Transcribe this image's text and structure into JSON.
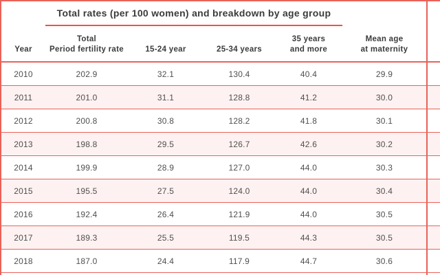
{
  "colors": {
    "line-red": "#e96158",
    "underline-red": "#ef5147",
    "row-pink": "#fdf2f1",
    "heading-text": "#3b3b3b",
    "value-text": "#4f4f4f",
    "bg": "#ffffff"
  },
  "table": {
    "title": "Total rates (per 100 women) and breakdown by age group",
    "header": {
      "col1": [
        "Year"
      ],
      "col2": [
        "Total",
        "Period fertility rate"
      ],
      "col3": [
        "15-24 year"
      ],
      "col4": [
        "25-34 years"
      ],
      "col5": [
        "35 years",
        "and more"
      ],
      "col6": [
        "Mean age",
        "at maternity"
      ]
    },
    "rows": [
      [
        "2010",
        "202.9",
        "32.1",
        "130.4",
        "40.4",
        "29.9"
      ],
      [
        "2011",
        "201.0",
        "31.1",
        "128.8",
        "41.2",
        "30.0"
      ],
      [
        "2012",
        "200.8",
        "30.8",
        "128.2",
        "41.8",
        "30.1"
      ],
      [
        "2013",
        "198.8",
        "29.5",
        "126.7",
        "42.6",
        "30.2"
      ],
      [
        "2014",
        "199.9",
        "28.9",
        "127.0",
        "44.0",
        "30.3"
      ],
      [
        "2015",
        "195.5",
        "27.5",
        "124.0",
        "44.0",
        "30.4"
      ],
      [
        "2016",
        "192.4",
        "26.4",
        "121.9",
        "44.0",
        "30.5"
      ],
      [
        "2017",
        "189.3",
        "25.5",
        "119.5",
        "44.3",
        "30.5"
      ],
      [
        "2018",
        "187.0",
        "24.4",
        "117.9",
        "44.7",
        "30.6"
      ]
    ]
  },
  "chart_data": {
    "type": "table",
    "title": "Total rates (per 100 women) and breakdown by age group",
    "categories": [
      "2010",
      "2011",
      "2012",
      "2013",
      "2014",
      "2015",
      "2016",
      "2017",
      "2018"
    ],
    "series": [
      {
        "name": "Total Period fertility rate",
        "values": [
          202.9,
          201.0,
          200.8,
          198.8,
          199.9,
          195.5,
          192.4,
          189.3,
          187.0
        ]
      },
      {
        "name": "15-24 year",
        "values": [
          32.1,
          31.1,
          30.8,
          29.5,
          28.9,
          27.5,
          26.4,
          25.5,
          24.4
        ]
      },
      {
        "name": "25-34 years",
        "values": [
          130.4,
          128.8,
          128.2,
          126.7,
          127.0,
          124.0,
          121.9,
          119.5,
          117.9
        ]
      },
      {
        "name": "35 years and more",
        "values": [
          40.4,
          41.2,
          41.8,
          42.6,
          44.0,
          44.0,
          44.0,
          44.3,
          44.7
        ]
      },
      {
        "name": "Mean age at maternity",
        "values": [
          29.9,
          30.0,
          30.1,
          30.2,
          30.3,
          30.4,
          30.5,
          30.5,
          30.6
        ]
      }
    ]
  }
}
